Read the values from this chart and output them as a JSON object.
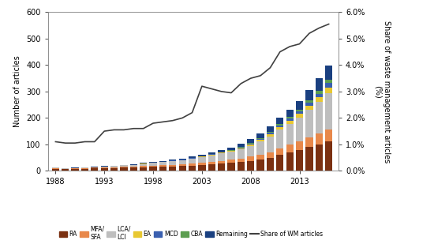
{
  "years": [
    1988,
    1989,
    1990,
    1991,
    1992,
    1993,
    1994,
    1995,
    1996,
    1997,
    1998,
    1999,
    2000,
    2001,
    2002,
    2003,
    2004,
    2005,
    2006,
    2007,
    2008,
    2009,
    2010,
    2011,
    2012,
    2013,
    2014,
    2015,
    2016
  ],
  "RA": [
    8,
    6,
    7,
    8,
    9,
    10,
    11,
    12,
    13,
    14,
    15,
    16,
    17,
    18,
    20,
    22,
    25,
    28,
    30,
    33,
    38,
    42,
    50,
    60,
    70,
    80,
    90,
    100,
    110
  ],
  "MFA_SFA": [
    2,
    2,
    2,
    3,
    3,
    3,
    3,
    4,
    4,
    4,
    5,
    5,
    6,
    6,
    7,
    8,
    9,
    10,
    12,
    14,
    16,
    18,
    20,
    25,
    28,
    32,
    36,
    40,
    45
  ],
  "LCA_LCI": [
    2,
    1,
    2,
    2,
    2,
    3,
    4,
    5,
    6,
    8,
    10,
    12,
    14,
    16,
    18,
    22,
    25,
    28,
    30,
    35,
    40,
    50,
    60,
    70,
    80,
    90,
    105,
    120,
    140
  ],
  "EA": [
    0,
    0,
    0,
    0,
    0,
    0,
    0,
    0,
    0,
    1,
    1,
    1,
    1,
    1,
    2,
    2,
    2,
    3,
    3,
    4,
    5,
    6,
    7,
    9,
    11,
    13,
    15,
    18,
    20
  ],
  "MCD": [
    0,
    0,
    0,
    0,
    0,
    0,
    0,
    0,
    0,
    0,
    0,
    0,
    1,
    1,
    1,
    1,
    2,
    2,
    2,
    3,
    4,
    5,
    6,
    7,
    8,
    10,
    12,
    14,
    16
  ],
  "CBA": [
    0,
    0,
    0,
    0,
    0,
    0,
    0,
    0,
    0,
    0,
    0,
    0,
    0,
    0,
    0,
    0,
    0,
    0,
    1,
    1,
    2,
    3,
    4,
    5,
    6,
    7,
    9,
    10,
    12
  ],
  "Remaining": [
    1,
    1,
    1,
    1,
    1,
    2,
    2,
    2,
    3,
    3,
    4,
    4,
    5,
    5,
    6,
    7,
    8,
    9,
    10,
    12,
    14,
    16,
    20,
    24,
    28,
    33,
    40,
    48,
    55
  ],
  "share_wm": [
    1.1,
    1.05,
    1.05,
    1.1,
    1.1,
    1.5,
    1.55,
    1.55,
    1.6,
    1.6,
    1.8,
    1.85,
    1.9,
    2.0,
    2.2,
    3.2,
    3.1,
    3.0,
    2.95,
    3.3,
    3.5,
    3.6,
    3.9,
    4.5,
    4.7,
    4.8,
    5.2,
    5.4,
    5.55
  ],
  "colors": {
    "RA": "#7B3011",
    "MFA_SFA": "#E8884A",
    "LCA_LCI": "#BEBEBE",
    "EA": "#E8C832",
    "MCD": "#3A60B0",
    "CBA": "#5C9E50",
    "Remaining": "#1A4080"
  },
  "ylim_left": [
    0,
    600
  ],
  "ylim_right": [
    0.0,
    6.0
  ],
  "ylabel_left": "Number of articles",
  "ylabel_right": "Share of waste management articles\n(%)",
  "xtick_labels": [
    "1988",
    "1993",
    "1998",
    "2003",
    "2008",
    "2013"
  ],
  "xtick_positions": [
    1988,
    1993,
    1998,
    2003,
    2008,
    2013
  ],
  "yticks_left": [
    0,
    100,
    200,
    300,
    400,
    500,
    600
  ],
  "yticks_right": [
    0.0,
    1.0,
    2.0,
    3.0,
    4.0,
    5.0,
    6.0
  ],
  "ytick_right_labels": [
    "0.0%",
    "1.0%",
    "2.0%",
    "3.0%",
    "4.0%",
    "5.0%",
    "6.0%"
  ],
  "line_color": "#404040",
  "xlim": [
    1987.2,
    2017.0
  ],
  "bar_width": 0.75
}
